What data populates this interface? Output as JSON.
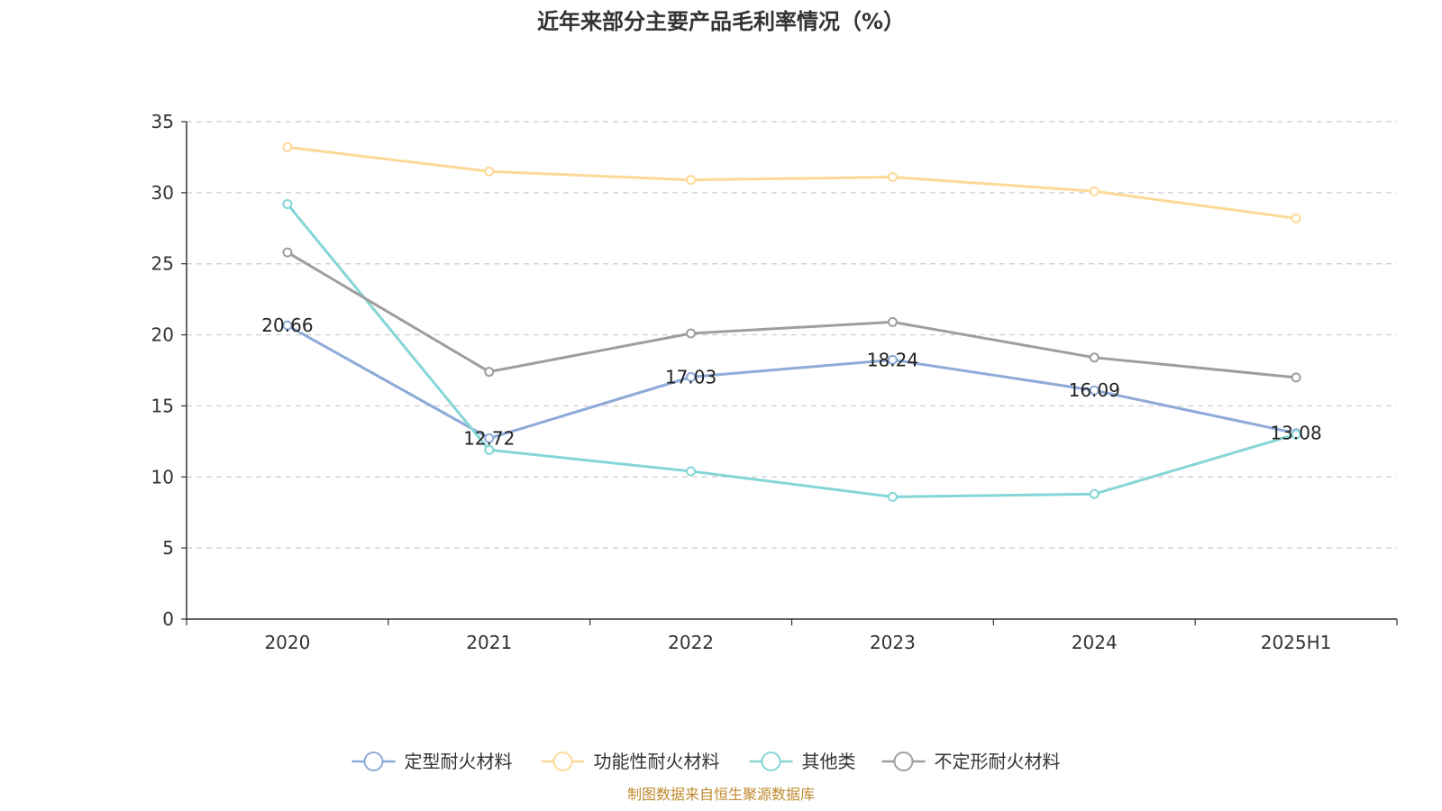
{
  "chart_data": {
    "type": "line",
    "title": "近年来部分主要产品毛利率情况（%）",
    "categories": [
      "2020",
      "2021",
      "2022",
      "2023",
      "2024",
      "2025H1"
    ],
    "ylim": [
      0,
      35
    ],
    "yticks": [
      0,
      5,
      10,
      15,
      20,
      25,
      30,
      35
    ],
    "grid": true,
    "legend_position": "bottom",
    "series": [
      {
        "name": "定型耐火材料",
        "color": "#8eaad8",
        "values": [
          20.66,
          12.72,
          17.03,
          18.24,
          16.09,
          13.08
        ],
        "labels": [
          "20.66",
          "12.72",
          "17.03",
          "18.24",
          "16.09",
          "13.08"
        ]
      },
      {
        "name": "功能性耐火材料",
        "color": "#fdd998",
        "values": [
          33.2,
          31.5,
          30.9,
          31.1,
          30.1,
          28.2
        ]
      },
      {
        "name": "其他类",
        "color": "#85d6d6",
        "values": [
          29.2,
          11.9,
          10.4,
          8.6,
          8.8,
          13.0
        ]
      },
      {
        "name": "不定形耐火材料",
        "color": "#9e9e9e",
        "values": [
          25.8,
          17.4,
          20.1,
          20.9,
          18.4,
          17.0
        ]
      }
    ]
  },
  "source": "制图数据来自恒生聚源数据库"
}
